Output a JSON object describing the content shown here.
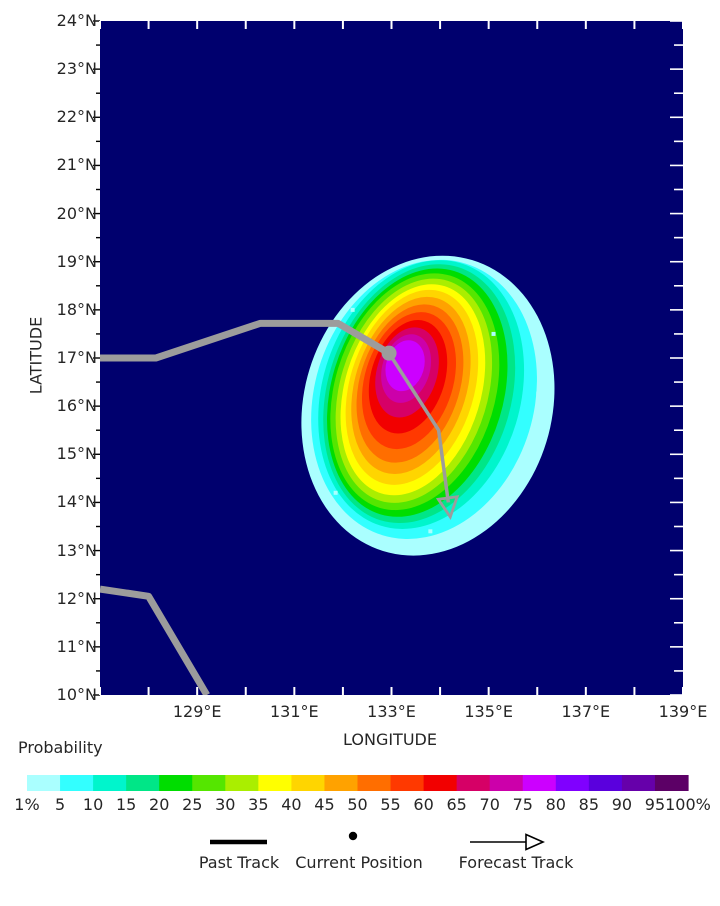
{
  "chart_data": {
    "type": "heatmap",
    "subtype": "tropical-cyclone-strike-probability-contours",
    "title": "",
    "xlabel": "LONGITUDE",
    "ylabel": "LATITUDE",
    "xlim": [
      127,
      139
    ],
    "ylim": [
      10,
      24
    ],
    "grid": false,
    "background_color": "#00006e",
    "x_ticks": [
      {
        "value": 129,
        "label": "129°E"
      },
      {
        "value": 131,
        "label": "131°E"
      },
      {
        "value": 133,
        "label": "133°E"
      },
      {
        "value": 135,
        "label": "135°E"
      },
      {
        "value": 137,
        "label": "137°E"
      },
      {
        "value": 139,
        "label": "139°E"
      }
    ],
    "y_ticks": [
      {
        "value": 24,
        "label": "24°N"
      },
      {
        "value": 23,
        "label": "23°N"
      },
      {
        "value": 22,
        "label": "22°N"
      },
      {
        "value": 21,
        "label": "21°N"
      },
      {
        "value": 20,
        "label": "20°N"
      },
      {
        "value": 19,
        "label": "19°N"
      },
      {
        "value": 18,
        "label": "18°N"
      },
      {
        "value": 17,
        "label": "17°N"
      },
      {
        "value": 16,
        "label": "16°N"
      },
      {
        "value": 15,
        "label": "15°N"
      },
      {
        "value": 14,
        "label": "14°N"
      },
      {
        "value": 13,
        "label": "13°N"
      },
      {
        "value": 12,
        "label": "12°N"
      },
      {
        "value": 11,
        "label": "11°N"
      },
      {
        "value": 10,
        "label": "10°N"
      }
    ],
    "colorbar": {
      "title": "Probability",
      "boundary_labels": [
        "1%",
        "5",
        "10",
        "15",
        "20",
        "25",
        "30",
        "35",
        "40",
        "45",
        "50",
        "55",
        "60",
        "65",
        "70",
        "75",
        "80",
        "85",
        "90",
        "95",
        "100%"
      ],
      "colors": [
        "#aaffff",
        "#33ffff",
        "#00f5cc",
        "#00e687",
        "#00dd00",
        "#55e600",
        "#aaee00",
        "#ffff00",
        "#ffd500",
        "#ffa200",
        "#ff6e00",
        "#ff3900",
        "#f20000",
        "#d60066",
        "#cc00aa",
        "#cc00ff",
        "#8000ff",
        "#5a00dd",
        "#6600aa",
        "#5c0066"
      ]
    },
    "contours": [
      {
        "level_percent": 1,
        "color": "#aaffff",
        "center": [
          133.75,
          16.01
        ],
        "radii_deg": [
          2.55,
          3.16
        ],
        "rotation_deg": 17
      },
      {
        "level_percent": 5,
        "color": "#33ffff",
        "center": [
          133.67,
          16.14
        ],
        "radii_deg": [
          2.26,
          2.95
        ],
        "rotation_deg": 17
      },
      {
        "level_percent": 10,
        "color": "#00f5cc",
        "center": [
          133.61,
          16.24
        ],
        "radii_deg": [
          2.04,
          2.85
        ],
        "rotation_deg": 17
      },
      {
        "level_percent": 15,
        "color": "#00e687",
        "center": [
          133.57,
          16.26
        ],
        "radii_deg": [
          1.89,
          2.75
        ],
        "rotation_deg": 17
      },
      {
        "level_percent": 20,
        "color": "#00dd00",
        "center": [
          133.53,
          16.28
        ],
        "radii_deg": [
          1.77,
          2.64
        ],
        "rotation_deg": 17
      },
      {
        "level_percent": 25,
        "color": "#55e600",
        "center": [
          133.48,
          16.3
        ],
        "radii_deg": [
          1.65,
          2.52
        ],
        "rotation_deg": 17
      },
      {
        "level_percent": 30,
        "color": "#aaee00",
        "center": [
          133.46,
          16.32
        ],
        "radii_deg": [
          1.52,
          2.39
        ],
        "rotation_deg": 17
      },
      {
        "level_percent": 35,
        "color": "#ffff00",
        "center": [
          133.44,
          16.34
        ],
        "radii_deg": [
          1.4,
          2.25
        ],
        "rotation_deg": 17
      },
      {
        "level_percent": 40,
        "color": "#ffd500",
        "center": [
          133.42,
          16.39
        ],
        "radii_deg": [
          1.28,
          2.08
        ],
        "rotation_deg": 17
      },
      {
        "level_percent": 45,
        "color": "#ffa200",
        "center": [
          133.4,
          16.43
        ],
        "radii_deg": [
          1.15,
          1.89
        ],
        "rotation_deg": 17
      },
      {
        "level_percent": 50,
        "color": "#ff6e00",
        "center": [
          133.38,
          16.47
        ],
        "radii_deg": [
          1.03,
          1.69
        ],
        "rotation_deg": 17
      },
      {
        "level_percent": 55,
        "color": "#ff3900",
        "center": [
          133.36,
          16.53
        ],
        "radii_deg": [
          0.91,
          1.46
        ],
        "rotation_deg": 17
      },
      {
        "level_percent": 60,
        "color": "#f20000",
        "center": [
          133.34,
          16.61
        ],
        "radii_deg": [
          0.76,
          1.21
        ],
        "rotation_deg": 17
      },
      {
        "level_percent": 65,
        "color": "#d60066",
        "center": [
          133.32,
          16.7
        ],
        "radii_deg": [
          0.62,
          0.96
        ],
        "rotation_deg": 17
      },
      {
        "level_percent": 70,
        "color": "#cc00aa",
        "center": [
          133.3,
          16.78
        ],
        "radii_deg": [
          0.49,
          0.73
        ],
        "rotation_deg": 17
      },
      {
        "level_percent": 75,
        "color": "#cc00ff",
        "center": [
          133.28,
          16.84
        ],
        "radii_deg": [
          0.39,
          0.54
        ],
        "rotation_deg": 17
      }
    ],
    "speckles": [
      [
        131.85,
        14.2
      ],
      [
        133.8,
        13.4
      ],
      [
        136.02,
        16.26
      ],
      [
        132.2,
        18.0
      ],
      [
        135.1,
        17.5
      ]
    ],
    "tracks": {
      "color": "#9c9c9c",
      "past_track_early": [
        [
          127.0,
          12.2
        ],
        [
          128.0,
          12.05
        ],
        [
          129.2,
          10.0
        ]
      ],
      "past_track": [
        [
          127.0,
          17.0
        ],
        [
          128.15,
          17.0
        ],
        [
          130.3,
          17.72
        ],
        [
          131.9,
          17.72
        ],
        [
          132.95,
          17.1
        ]
      ],
      "current_position": [
        132.95,
        17.1
      ],
      "forecast_track": [
        [
          132.95,
          17.1
        ],
        [
          133.97,
          15.5
        ],
        [
          134.17,
          14.0
        ]
      ],
      "forecast_arrow_tip": [
        134.21,
        13.7
      ]
    },
    "legend": [
      {
        "symbol": "past-track-line",
        "label": "Past Track"
      },
      {
        "symbol": "current-position-dot",
        "label": "Current Position"
      },
      {
        "symbol": "forecast-track-arrow",
        "label": "Forecast Track"
      }
    ]
  }
}
